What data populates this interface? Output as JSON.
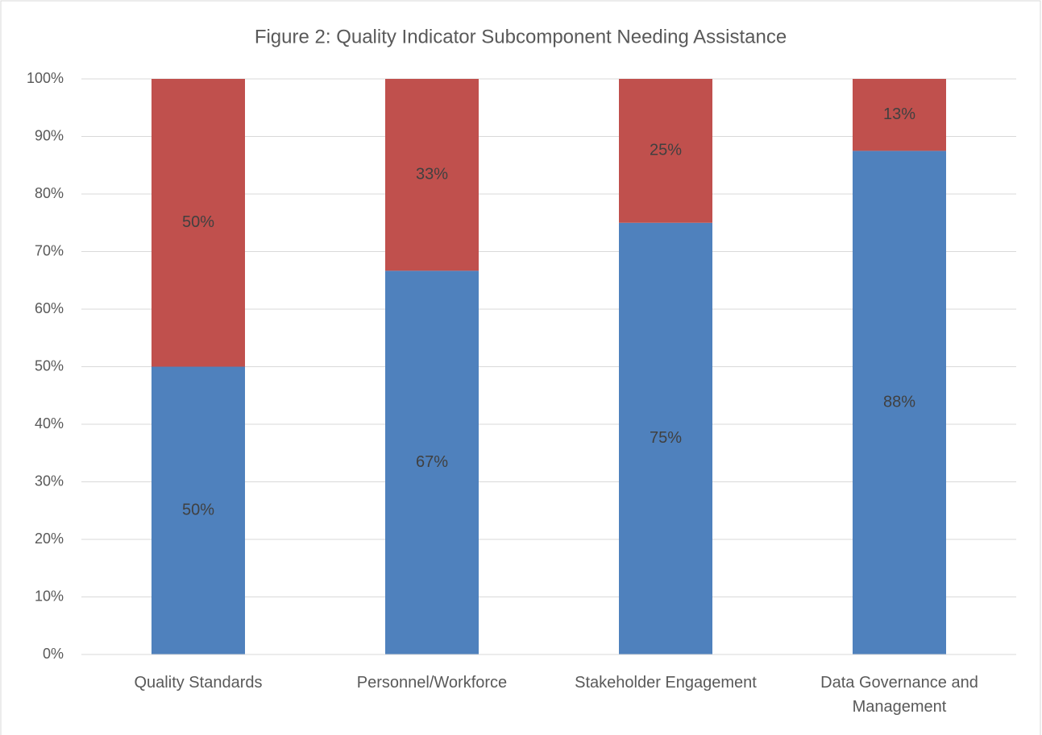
{
  "chart_data": {
    "type": "stacked_bar",
    "title": "Figure 2: Quality Indicator Subcomponent Needing Assistance",
    "categories": [
      "Quality Standards",
      "Personnel/Workforce",
      "Stakeholder Engagement",
      "Data Governance and Management"
    ],
    "series": [
      {
        "color": "#4f81bd",
        "values": [
          50,
          66.67,
          75,
          87.5
        ],
        "value_labels": [
          "50%",
          "67%",
          "75%",
          "88%"
        ]
      },
      {
        "color": "#c0504d",
        "values": [
          50,
          33.33,
          25,
          12.5
        ],
        "value_labels": [
          "50%",
          "33%",
          "25%",
          "13%"
        ]
      }
    ],
    "ylim": [
      0,
      100
    ],
    "yticks": [
      {
        "value": 0,
        "label": "0%"
      },
      {
        "value": 10,
        "label": "10%"
      },
      {
        "value": 20,
        "label": "20%"
      },
      {
        "value": 30,
        "label": "30%"
      },
      {
        "value": 40,
        "label": "40%"
      },
      {
        "value": 50,
        "label": "50%"
      },
      {
        "value": 60,
        "label": "60%"
      },
      {
        "value": 70,
        "label": "70%"
      },
      {
        "value": 80,
        "label": "80%"
      },
      {
        "value": 90,
        "label": "90%"
      },
      {
        "value": 100,
        "label": "100%"
      }
    ],
    "grid": true
  }
}
